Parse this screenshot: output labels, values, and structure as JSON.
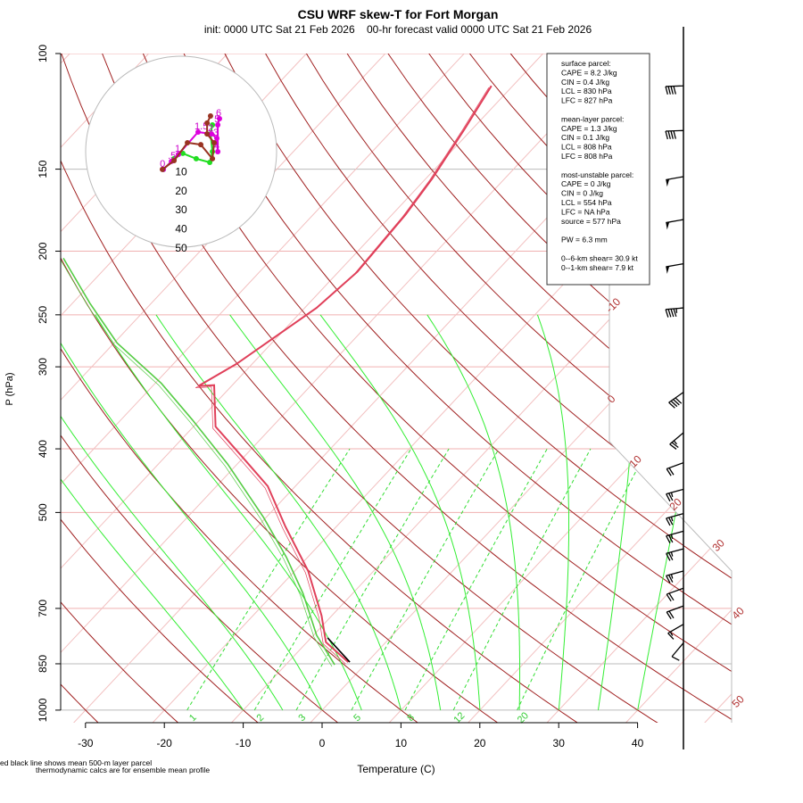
{
  "chart_data": {
    "type": "line",
    "title": "CSU WRF skew-T for Fort Morgan",
    "subtitle": "init: 0000 UTC Sat 21 Feb 2026    00-hr forecast valid 0000 UTC Sat 21 Feb 2026",
    "xlabel": "Temperature (C)",
    "ylabel": "P (hPa)",
    "xlim": [
      -33,
      45
    ],
    "ylim": [
      1000,
      100
    ],
    "x_ticks": [
      "-30",
      "-20",
      "-10",
      "0",
      "10",
      "20",
      "30",
      "40"
    ],
    "x_tick_values": [
      -30,
      -20,
      -10,
      0,
      10,
      20,
      30,
      40
    ],
    "p_ticks": [
      "100",
      "150",
      "200",
      "250",
      "300",
      "400",
      "500",
      "700",
      "850",
      "1000"
    ],
    "p_tick_values": [
      100,
      150,
      200,
      250,
      300,
      400,
      500,
      700,
      850,
      1000
    ],
    "isotherm_labels": [
      "-10",
      "0",
      "10",
      "20",
      "30",
      "40",
      "50"
    ],
    "mixing_ratio_labels": [
      "1",
      "2",
      "3",
      "5",
      "8",
      "12",
      "20"
    ],
    "mixing_ratio_values": [
      1,
      2,
      3,
      5,
      8,
      12,
      20
    ],
    "moist_adiabat_thetaw": [
      -10,
      -5,
      0,
      5,
      10,
      15,
      20,
      25,
      30,
      35,
      40
    ],
    "dry_adiabat_theta_c": [
      -30,
      -20,
      -10,
      0,
      10,
      20,
      30,
      40,
      50,
      60,
      70,
      80,
      90,
      100,
      110,
      120,
      130,
      140,
      150,
      160,
      170,
      180,
      190,
      200
    ],
    "series": [
      {
        "name": "temperature",
        "color": "#e0405a",
        "p": [
          845,
          788,
          718,
          614,
          525,
          456,
          409,
          370,
          320,
          321,
          297,
          244,
          215,
          176,
          155,
          130,
          112
        ],
        "t": [
          -2.4,
          -7.6,
          -11.3,
          -18.3,
          -26.5,
          -33.5,
          -40.6,
          -47.2,
          -52.3,
          -54.2,
          -52.0,
          -48.5,
          -47.6,
          -48.3,
          -49.2,
          -51.0,
          -52.7
        ]
      },
      {
        "name": "dewpoint",
        "color": "#55cc44",
        "p": [
          853,
          769,
          664,
          585,
          509,
          422,
          361,
          318,
          276,
          240,
          205
        ],
        "t": [
          -3.8,
          -9.6,
          -16.3,
          -22.7,
          -30.3,
          -41.2,
          -51.0,
          -59.2,
          -69.6,
          -77.8,
          -86.5
        ]
      },
      {
        "name": "mean 500-m layer parcel",
        "color": "#000000",
        "p": [
          845,
          776
        ],
        "t": [
          -2.2,
          -7.9
        ]
      }
    ],
    "winds": {
      "p": [
        112,
        131,
        154,
        179,
        209,
        244,
        328,
        378,
        420,
        461,
        502,
        534,
        568,
        614,
        652,
        694,
        740,
        790
      ],
      "speed": [
        40,
        40,
        50,
        50,
        50,
        45,
        40,
        25,
        20,
        25,
        25,
        25,
        25,
        25,
        20,
        20,
        15,
        10
      ],
      "dir": [
        272,
        272,
        280,
        280,
        280,
        275,
        305,
        310,
        290,
        285,
        285,
        285,
        285,
        285,
        290,
        290,
        300,
        320
      ]
    },
    "hodograph": {
      "ring_labels": [
        "10",
        "20",
        "30",
        "40",
        "50"
      ],
      "ring_values": [
        10,
        20,
        30,
        40,
        50
      ],
      "height_labels": [
        "0",
        ".5",
        "1",
        "1.5",
        "2",
        "3",
        "4",
        "5",
        "6"
      ],
      "traces": [
        {
          "name": "member-green",
          "color": "#22dd22",
          "u": [
            -9.3,
            -3.7,
            0.9,
            7.9,
            15,
            16.4,
            15.4,
            16.4
          ],
          "v": [
            -9.3,
            -3.7,
            -0.9,
            -3.7,
            -5.6,
            0,
            9.3,
            14
          ]
        },
        {
          "name": "member-magenta",
          "color": "#dd00dd",
          "u": [
            -9.3,
            -5.1,
            -1.4,
            8.9,
            15.9,
            18.7,
            19.2,
            19.2,
            20.1
          ],
          "v": [
            -9.3,
            -5.1,
            -1.4,
            10.3,
            9.3,
            7,
            0,
            14,
            17.3
          ]
        },
        {
          "name": "mean",
          "color": "#993322",
          "u": [
            -9.8,
            -3.7,
            3.3,
            10.3,
            16.4,
            17.3,
            13.6,
            13.6,
            15.4
          ],
          "v": [
            -9.3,
            -4.7,
            4.7,
            3.7,
            -3.7,
            4.7,
            9.3,
            15,
            18.7
          ]
        }
      ]
    },
    "parcel_box": [
      "surface parcel:",
      "CAPE = 8.2 J/kg",
      "CIN = 0.4 J/kg",
      "LCL = 830 hPa",
      "LFC = 827 hPa",
      "",
      "mean-layer parcel:",
      "CAPE = 1.3 J/kg",
      "CIN = 0.1 J/kg",
      "LCL = 808 hPa",
      "LFC = 808 hPa",
      "",
      "most-unstable parcel:",
      "CAPE = 0 J/kg",
      "CIN = 0 J/kg",
      "LCL = 554 hPa",
      "LFC = NA hPa",
      "source = 577 hPa",
      "",
      "PW =  6.3 mm",
      "",
      "0--6-km shear= 30.9 kt",
      "0--1-km shear= 7.9 kt"
    ],
    "footnote1": "ed black line shows mean 500-m layer parcel",
    "footnote2": "thermodynamic calcs are for ensemble mean profile"
  }
}
